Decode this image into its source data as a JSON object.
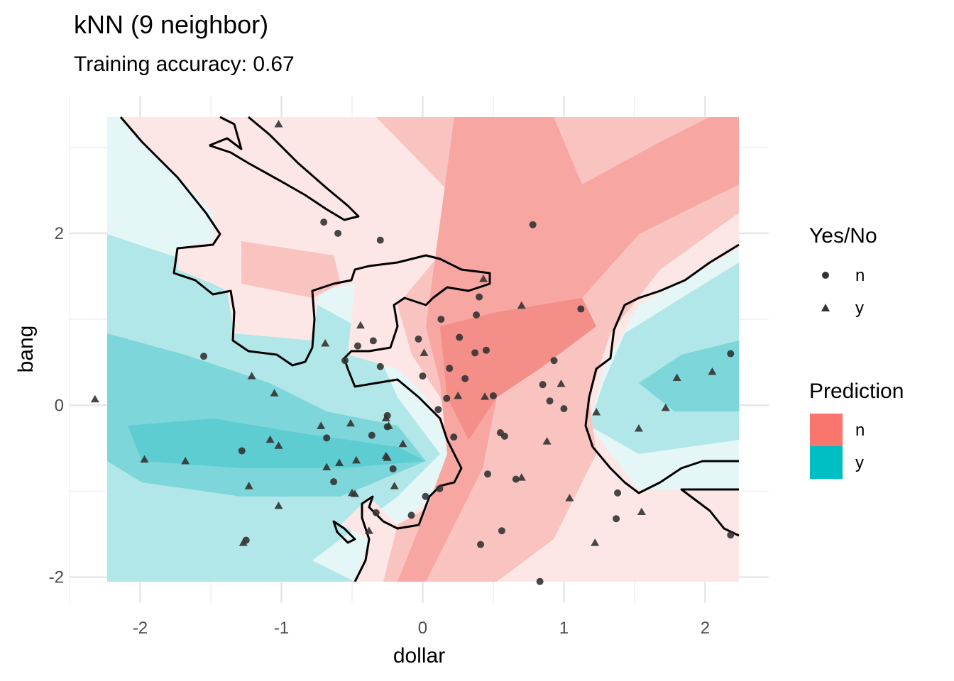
{
  "chart_data": {
    "type": "scatter",
    "title": "kNN (9 neighbor)",
    "subtitle": "Training accuracy: 0.67",
    "xlabel": "dollar",
    "ylabel": "bang",
    "xlim": [
      -2.5,
      2.45
    ],
    "ylim": [
      -2.3,
      3.6
    ],
    "x_ticks": [
      -2,
      -1,
      0,
      1,
      2
    ],
    "y_ticks": [
      -2,
      0,
      2
    ],
    "x_tick_labels": [
      "-2",
      "-1",
      "0",
      "1",
      "2"
    ],
    "y_tick_labels": [
      "-2",
      "0",
      "2"
    ],
    "grid": true,
    "raster_extent": {
      "x": [
        -2.33,
        2.18
      ],
      "y": [
        -2.08,
        3.27
      ]
    },
    "legend_shape": {
      "title": "Yes/No",
      "entries": [
        {
          "label": "n",
          "shape": "circle"
        },
        {
          "label": "y",
          "shape": "triangle"
        }
      ]
    },
    "legend_fill": {
      "title": "Prediction",
      "entries": [
        {
          "label": "n",
          "color": "#F8766D"
        },
        {
          "label": "y",
          "color": "#00BFC4"
        }
      ]
    },
    "colors": {
      "n": "#F8766D",
      "y": "#00BFC4",
      "points": "#333333",
      "boundary": "#000000"
    },
    "series": [
      {
        "name": "n",
        "shape": "circle",
        "points": [
          [
            -1.55,
            0.57
          ],
          [
            -0.7,
            2.13
          ],
          [
            -0.6,
            2.0
          ],
          [
            -0.3,
            1.92
          ],
          [
            0.78,
            2.1
          ],
          [
            0.4,
            1.26
          ],
          [
            0.38,
            1.05
          ],
          [
            0.13,
            1.0
          ],
          [
            0.26,
            0.79
          ],
          [
            0.37,
            0.61
          ],
          [
            0.45,
            0.64
          ],
          [
            0.93,
            0.52
          ],
          [
            1.12,
            1.12
          ],
          [
            -0.35,
            0.75
          ],
          [
            -0.46,
            0.69
          ],
          [
            -0.3,
            0.45
          ],
          [
            -0.55,
            0.52
          ],
          [
            -0.03,
            0.77
          ],
          [
            0.0,
            0.34
          ],
          [
            0.19,
            0.43
          ],
          [
            0.3,
            0.31
          ],
          [
            0.17,
            0.08
          ],
          [
            0.5,
            0.11
          ],
          [
            0.85,
            0.24
          ],
          [
            0.9,
            0.05
          ],
          [
            1.0,
            -0.04
          ],
          [
            0.55,
            -0.32
          ],
          [
            0.58,
            -0.36
          ],
          [
            0.22,
            -0.37
          ],
          [
            0.11,
            -0.05
          ],
          [
            -0.25,
            -0.12
          ],
          [
            -0.25,
            -0.25
          ],
          [
            -0.36,
            -0.35
          ],
          [
            -0.68,
            -0.38
          ],
          [
            -0.63,
            -0.89
          ],
          [
            -0.21,
            -0.74
          ],
          [
            0.46,
            -0.8
          ],
          [
            0.66,
            -0.86
          ],
          [
            0.12,
            -0.97
          ],
          [
            0.02,
            -1.06
          ],
          [
            -0.08,
            -1.28
          ],
          [
            -0.33,
            -1.25
          ],
          [
            0.56,
            -1.46
          ],
          [
            0.41,
            -1.62
          ],
          [
            0.83,
            -2.05
          ],
          [
            1.37,
            -1.32
          ],
          [
            -1.28,
            -0.53
          ],
          [
            -1.25,
            -1.57
          ],
          [
            2.18,
            0.6
          ],
          [
            2.18,
            -1.51
          ],
          [
            1.38,
            -1.02
          ]
        ]
      },
      {
        "name": "y",
        "shape": "triangle",
        "points": [
          [
            -1.02,
            3.27
          ],
          [
            -2.32,
            0.07
          ],
          [
            -1.97,
            -0.63
          ],
          [
            -1.68,
            -0.65
          ],
          [
            -1.21,
            0.34
          ],
          [
            -1.05,
            0.14
          ],
          [
            -1.08,
            -0.4
          ],
          [
            -1.02,
            -0.47
          ],
          [
            -1.23,
            -0.94
          ],
          [
            -1.02,
            -1.17
          ],
          [
            -1.27,
            -1.6
          ],
          [
            -0.69,
            0.72
          ],
          [
            -0.44,
            0.93
          ],
          [
            -0.72,
            -0.24
          ],
          [
            -0.51,
            -0.21
          ],
          [
            -0.59,
            -0.67
          ],
          [
            -0.68,
            -0.72
          ],
          [
            -0.47,
            -0.64
          ],
          [
            -0.5,
            -1.02
          ],
          [
            -0.48,
            -1.03
          ],
          [
            -0.38,
            -1.46
          ],
          [
            -0.26,
            -0.15
          ],
          [
            -0.24,
            -0.24
          ],
          [
            -0.14,
            -0.45
          ],
          [
            -0.26,
            -0.59
          ],
          [
            -0.25,
            -0.61
          ],
          [
            -0.2,
            -0.94
          ],
          [
            0.01,
            0.61
          ],
          [
            0.25,
            0.11
          ],
          [
            0.44,
            0.1
          ],
          [
            0.43,
            1.47
          ],
          [
            0.7,
            1.16
          ],
          [
            0.88,
            -0.42
          ],
          [
            0.98,
            0.25
          ],
          [
            1.04,
            -1.08
          ],
          [
            1.23,
            -0.08
          ],
          [
            1.53,
            -0.27
          ],
          [
            1.55,
            -1.24
          ],
          [
            1.72,
            -0.03
          ],
          [
            1.8,
            0.32
          ],
          [
            2.05,
            0.39
          ],
          [
            1.22,
            -1.6
          ],
          [
            0.7,
            -0.84
          ]
        ]
      }
    ]
  }
}
